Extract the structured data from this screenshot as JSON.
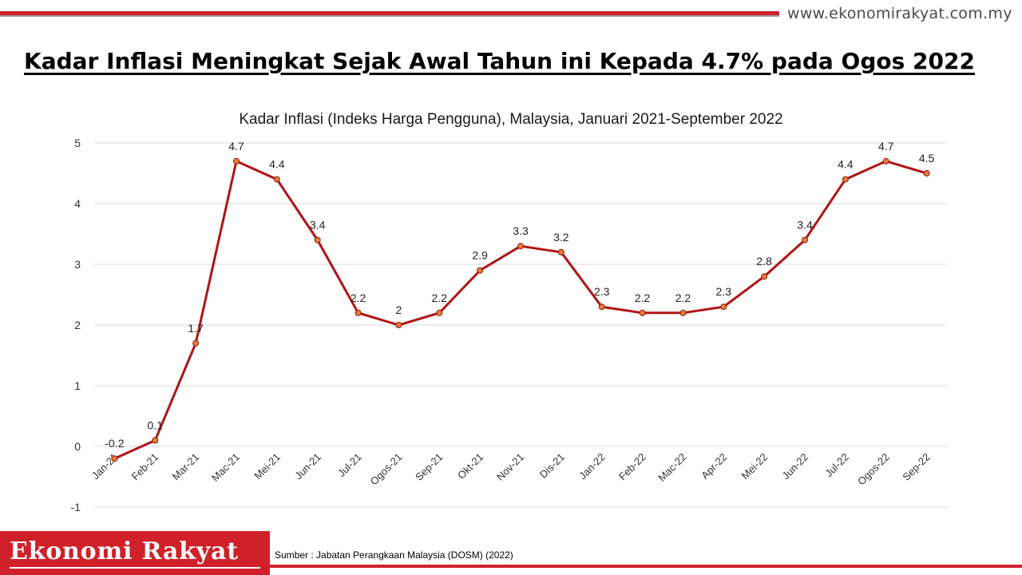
{
  "site_url": "www.ekonomirakyat.com.my",
  "headline": "Kadar Inflasi Meningkat Sejak Awal Tahun ini Kepada 4.7% pada Ogos 2022",
  "brand": "Ekonomi Rakyat",
  "source": "Sumber  : Jabatan Perangkaan Malaysia (DOSM) (2022)",
  "colors": {
    "accent_red": "#d0212a",
    "line": "#b01414",
    "marker_fill": "#f07a3a"
  },
  "chart_data": {
    "type": "line",
    "title": "Kadar Inflasi (Indeks Harga Pengguna), Malaysia, Januari 2021-September 2022",
    "xlabel": "",
    "ylabel": "",
    "ylim": [
      -1,
      5
    ],
    "yticks": [
      -1,
      0,
      1,
      2,
      3,
      4,
      5
    ],
    "grid": true,
    "legend": "none",
    "categories": [
      "Jan-21",
      "Feb-21",
      "Mar-21",
      "Mac-21",
      "Mei-21",
      "Jun-21",
      "Jul-21",
      "Ogos-21",
      "Sep-21",
      "Okt-21",
      "Nov-21",
      "Dis-21",
      "Jan-22",
      "Feb-22",
      "Mac-22",
      "Apr-22",
      "Mei-22",
      "Jun-22",
      "Jul-22",
      "Ogos-22",
      "Sep-22"
    ],
    "series": [
      {
        "values": [
          -0.2,
          0.1,
          1.7,
          4.7,
          4.4,
          3.4,
          2.2,
          2,
          2.2,
          2.9,
          3.3,
          3.2,
          2.3,
          2.2,
          2.2,
          2.3,
          2.8,
          3.4,
          4.4,
          4.7,
          4.5
        ],
        "data_labels": [
          "-0.2",
          "0.1",
          "1.7",
          "4.7",
          "4.4",
          "3.4",
          "2.2",
          "2",
          "2.2",
          "2.9",
          "3.3",
          "3.2",
          "2.3",
          "2.2",
          "2.2",
          "2.3",
          "2.8",
          "3.4",
          "4.4",
          "4.7",
          "4.5"
        ]
      }
    ]
  }
}
